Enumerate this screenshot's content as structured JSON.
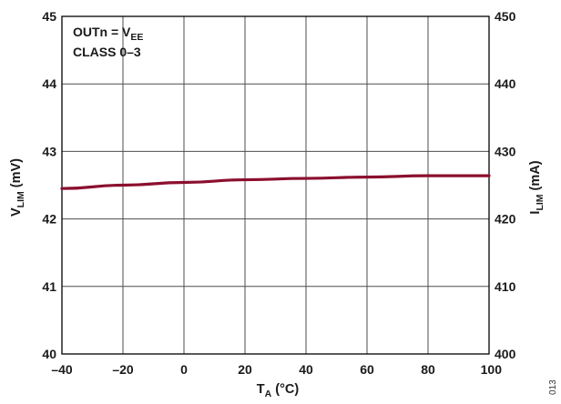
{
  "chart_data": {
    "type": "line",
    "x": [
      -40,
      -20,
      0,
      20,
      40,
      60,
      80,
      100
    ],
    "series": [
      {
        "values": [
          42.45,
          42.5,
          42.54,
          42.58,
          42.6,
          42.62,
          42.64,
          42.64
        ]
      }
    ],
    "xlim": [
      -40,
      100
    ],
    "xticks": [
      "–40",
      "–20",
      "0",
      "20",
      "40",
      "60",
      "80",
      "100"
    ],
    "ylim": [
      40,
      45
    ],
    "yticks": [
      "40",
      "41",
      "42",
      "43",
      "44",
      "45"
    ],
    "y2lim": [
      400,
      450
    ],
    "y2ticks": [
      "400",
      "410",
      "420",
      "430",
      "440",
      "450"
    ],
    "xlabel": {
      "main": "T",
      "sub": "A",
      "tail": " (°C)"
    },
    "ylabel": {
      "main": "V",
      "sub": "LIM",
      "tail": " (mV)"
    },
    "y2label": {
      "main": "I",
      "sub": "LIM",
      "tail": " (mA)"
    },
    "annotation": {
      "line1_main": "OUTn = V",
      "line1_sub": "EE",
      "line2": "CLASS 0–3"
    },
    "grid": true,
    "colors": {
      "line": "#8B0F2E",
      "grid": "#4d4d4d",
      "frame": "#000000"
    },
    "figure_code": "013"
  }
}
